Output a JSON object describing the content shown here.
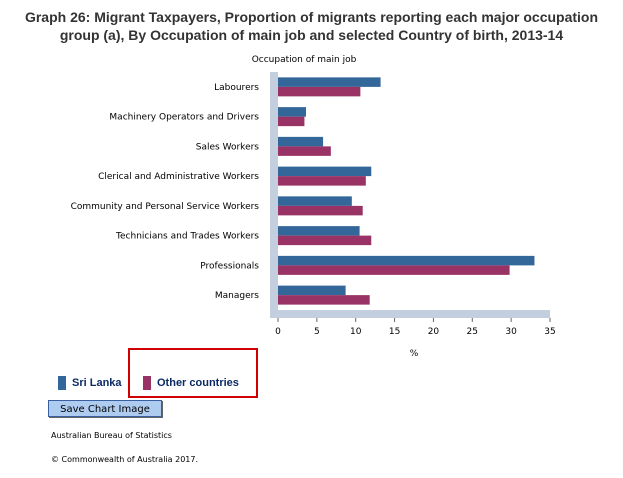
{
  "title_line1": "Graph 26: Migrant Taxpayers, Proportion of migrants reporting each major occupation",
  "title_line2": "group (a), By Occupation of main job and selected Country of birth, 2013-14",
  "chart_data": {
    "type": "bar",
    "orientation": "horizontal",
    "ylabel": "Occupation of main job",
    "xlabel": "%",
    "xlim": [
      0,
      35
    ],
    "xticks": [
      0,
      5,
      10,
      15,
      20,
      25,
      30,
      35
    ],
    "categories": [
      "Labourers",
      "Machinery Operators and Drivers",
      "Sales Workers",
      "Clerical and Administrative Workers",
      "Community and Personal Service Workers",
      "Technicians and Trades Workers",
      "Professionals",
      "Managers"
    ],
    "series": [
      {
        "name": "Sri Lanka",
        "color": "#336699",
        "values": [
          13.2,
          3.6,
          5.8,
          12.0,
          9.5,
          10.5,
          33.0,
          8.7
        ]
      },
      {
        "name": "Other countries",
        "color": "#993366",
        "values": [
          10.6,
          3.4,
          6.8,
          11.3,
          10.9,
          12.0,
          29.8,
          11.8
        ]
      }
    ]
  },
  "legend": {
    "series1_label": "Sri Lanka",
    "series2_label": "Other countries"
  },
  "button": {
    "save_label": "Save Chart Image"
  },
  "footer": {
    "source": "Australian Bureau of Statistics",
    "copyright": "© Commonwealth of Australia 2017."
  }
}
